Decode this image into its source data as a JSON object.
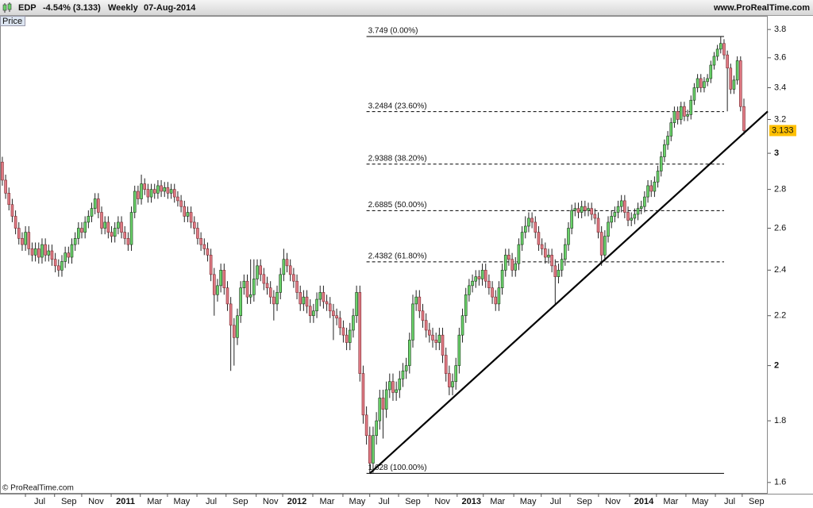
{
  "header": {
    "symbol": "EDP",
    "change": "-4.54% (3.133)",
    "period": "Weekly",
    "date": "07-Aug-2014",
    "site": "www.ProRealTime.com"
  },
  "panel_label": "Price",
  "footer": "© ProRealTime.com",
  "chart_data": {
    "type": "candlestick",
    "log_scale": true,
    "up_color": "#6ad26a",
    "down_color": "#e07a84",
    "line_color": "#000000",
    "last_price_color": "#ffc000",
    "xlim": [
      -0.7,
      231.2
    ],
    "ylim": [
      1.566,
      3.9
    ],
    "yticks": [
      1.6,
      1.8,
      2,
      2.2,
      2.4,
      2.6,
      2.8,
      3,
      3.2,
      3.4,
      3.6,
      3.8
    ],
    "xticks": [
      {
        "value": 11.3,
        "label": "Jul"
      },
      {
        "value": 20.1,
        "label": "Sep"
      },
      {
        "value": 28.3,
        "label": "Nov"
      },
      {
        "value": 37.2,
        "label": "2011"
      },
      {
        "value": 46,
        "label": "Mar"
      },
      {
        "value": 54.2,
        "label": "May"
      },
      {
        "value": 63.1,
        "label": "Jul"
      },
      {
        "value": 71.9,
        "label": "Sep"
      },
      {
        "value": 81,
        "label": "Nov"
      },
      {
        "value": 89,
        "label": "2012"
      },
      {
        "value": 98.1,
        "label": "Mar"
      },
      {
        "value": 107.2,
        "label": "May"
      },
      {
        "value": 115.3,
        "label": "Jul"
      },
      {
        "value": 124,
        "label": "Sep"
      },
      {
        "value": 132.9,
        "label": "Nov"
      },
      {
        "value": 141.7,
        "label": "2013"
      },
      {
        "value": 149.6,
        "label": "Mar"
      },
      {
        "value": 158.8,
        "label": "May"
      },
      {
        "value": 167.1,
        "label": "Jul"
      },
      {
        "value": 175.8,
        "label": "Sep"
      },
      {
        "value": 184.4,
        "label": "Nov"
      },
      {
        "value": 193.8,
        "label": "2014"
      },
      {
        "value": 201.9,
        "label": "Mar"
      },
      {
        "value": 210.8,
        "label": "May"
      },
      {
        "value": 219.7,
        "label": "Jul"
      },
      {
        "value": 227.8,
        "label": "Sep"
      }
    ],
    "open": [
      2.95,
      2.85,
      2.78,
      2.72,
      2.66,
      2.6,
      2.55,
      2.52,
      2.58,
      2.5,
      2.47,
      2.5,
      2.46,
      2.52,
      2.47,
      2.49,
      2.45,
      2.42,
      2.4,
      2.44,
      2.48,
      2.46,
      2.52,
      2.55,
      2.6,
      2.58,
      2.63,
      2.66,
      2.7,
      2.75,
      2.68,
      2.6,
      2.63,
      2.58,
      2.56,
      2.6,
      2.63,
      2.58,
      2.55,
      2.52,
      2.68,
      2.79,
      2.75,
      2.83,
      2.8,
      2.76,
      2.8,
      2.78,
      2.82,
      2.79,
      2.81,
      2.78,
      2.8,
      2.76,
      2.74,
      2.71,
      2.66,
      2.68,
      2.63,
      2.6,
      2.55,
      2.52,
      2.5,
      2.47,
      2.38,
      2.29,
      2.33,
      2.4,
      2.32,
      2.25,
      2.16,
      2.11,
      2.2,
      2.32,
      2.35,
      2.28,
      2.29,
      2.36,
      2.42,
      2.38,
      2.34,
      2.32,
      2.28,
      2.25,
      2.3,
      2.38,
      2.45,
      2.42,
      2.38,
      2.35,
      2.3,
      2.25,
      2.28,
      2.24,
      2.2,
      2.22,
      2.27,
      2.3,
      2.26,
      2.25,
      2.22,
      2.2,
      2.19,
      2.15,
      2.12,
      2.09,
      2.14,
      2.2,
      2.3,
      1.97,
      1.82,
      1.75,
      1.66,
      1.75,
      1.8,
      1.88,
      1.84,
      1.91,
      1.94,
      1.9,
      1.91,
      1.95,
      1.98,
      2.0,
      2.1,
      2.25,
      2.28,
      2.22,
      2.18,
      2.14,
      2.12,
      2.1,
      2.09,
      2.12,
      2.04,
      1.97,
      1.92,
      1.94,
      2.0,
      2.12,
      2.2,
      2.29,
      2.33,
      2.35,
      2.37,
      2.36,
      2.4,
      2.35,
      2.32,
      2.28,
      2.25,
      2.32,
      2.4,
      2.47,
      2.45,
      2.4,
      2.43,
      2.52,
      2.58,
      2.61,
      2.65,
      2.63,
      2.58,
      2.52,
      2.5,
      2.46,
      2.47,
      2.42,
      2.37,
      2.4,
      2.45,
      2.52,
      2.6,
      2.69,
      2.7,
      2.68,
      2.71,
      2.69,
      2.7,
      2.67,
      2.65,
      2.58,
      2.47,
      2.56,
      2.63,
      2.66,
      2.68,
      2.71,
      2.74,
      2.68,
      2.64,
      2.65,
      2.67,
      2.7,
      2.71,
      2.76,
      2.82,
      2.79,
      2.84,
      2.9,
      2.98,
      3.05,
      3.1,
      3.18,
      3.25,
      3.2,
      3.28,
      3.22,
      3.23,
      3.32,
      3.4,
      3.46,
      3.4,
      3.44,
      3.46,
      3.55,
      3.61,
      3.66,
      3.7,
      3.62,
      3.53,
      3.39,
      3.45,
      3.58,
      3.28
    ],
    "high": [
      2.98,
      2.88,
      2.81,
      2.75,
      2.69,
      2.63,
      2.58,
      2.61,
      2.61,
      2.53,
      2.53,
      2.53,
      2.55,
      2.55,
      2.52,
      2.52,
      2.48,
      2.45,
      2.47,
      2.51,
      2.51,
      2.55,
      2.58,
      2.63,
      2.63,
      2.66,
      2.69,
      2.73,
      2.78,
      2.78,
      2.71,
      2.66,
      2.66,
      2.61,
      2.63,
      2.66,
      2.66,
      2.61,
      2.58,
      2.71,
      2.82,
      2.82,
      2.88,
      2.86,
      2.83,
      2.83,
      2.83,
      2.85,
      2.85,
      2.84,
      2.84,
      2.83,
      2.83,
      2.79,
      2.77,
      2.74,
      2.71,
      2.71,
      2.66,
      2.63,
      2.58,
      2.55,
      2.53,
      2.5,
      2.41,
      2.36,
      2.43,
      2.43,
      2.35,
      2.28,
      2.19,
      2.23,
      2.35,
      2.38,
      2.38,
      2.45,
      2.45,
      2.45,
      2.45,
      2.41,
      2.37,
      2.35,
      2.31,
      2.33,
      2.41,
      2.5,
      2.48,
      2.45,
      2.41,
      2.38,
      2.33,
      2.31,
      2.31,
      2.27,
      2.25,
      2.3,
      2.33,
      2.33,
      2.29,
      2.28,
      2.25,
      2.23,
      2.22,
      2.18,
      2.15,
      2.17,
      2.23,
      2.33,
      2.33,
      2.0,
      1.85,
      1.78,
      1.78,
      1.83,
      1.91,
      1.91,
      1.94,
      1.97,
      1.97,
      1.94,
      1.98,
      2.01,
      2.03,
      2.13,
      2.29,
      2.31,
      2.31,
      2.25,
      2.21,
      2.17,
      2.15,
      2.13,
      2.15,
      2.15,
      2.07,
      2.0,
      1.97,
      2.03,
      2.15,
      2.23,
      2.32,
      2.36,
      2.38,
      2.4,
      2.4,
      2.43,
      2.43,
      2.38,
      2.35,
      2.31,
      2.35,
      2.43,
      2.5,
      2.5,
      2.48,
      2.46,
      2.55,
      2.61,
      2.66,
      2.68,
      2.68,
      2.66,
      2.61,
      2.55,
      2.53,
      2.5,
      2.5,
      2.45,
      2.43,
      2.48,
      2.55,
      2.63,
      2.72,
      2.73,
      2.73,
      2.74,
      2.74,
      2.73,
      2.73,
      2.7,
      2.68,
      2.61,
      2.59,
      2.66,
      2.69,
      2.71,
      2.74,
      2.77,
      2.77,
      2.71,
      2.68,
      2.7,
      2.73,
      2.74,
      2.79,
      2.85,
      2.85,
      2.87,
      2.93,
      3.01,
      3.08,
      3.13,
      3.21,
      3.28,
      3.28,
      3.31,
      3.31,
      3.26,
      3.35,
      3.43,
      3.49,
      3.49,
      3.47,
      3.49,
      3.58,
      3.64,
      3.69,
      3.749,
      3.73,
      3.65,
      3.56,
      3.48,
      3.61,
      3.61,
      3.33
    ],
    "low": [
      2.82,
      2.75,
      2.69,
      2.63,
      2.57,
      2.52,
      2.49,
      2.49,
      2.47,
      2.44,
      2.44,
      2.43,
      2.43,
      2.44,
      2.44,
      2.42,
      2.39,
      2.37,
      2.37,
      2.41,
      2.43,
      2.43,
      2.49,
      2.52,
      2.55,
      2.55,
      2.6,
      2.63,
      2.67,
      2.65,
      2.57,
      2.57,
      2.55,
      2.53,
      2.53,
      2.57,
      2.55,
      2.52,
      2.49,
      2.49,
      2.65,
      2.72,
      2.72,
      2.77,
      2.73,
      2.73,
      2.75,
      2.75,
      2.76,
      2.76,
      2.75,
      2.75,
      2.73,
      2.71,
      2.68,
      2.63,
      2.63,
      2.6,
      2.57,
      2.52,
      2.49,
      2.47,
      2.44,
      2.35,
      2.2,
      2.26,
      2.3,
      2.29,
      2.22,
      1.98,
      2.0,
      2.08,
      2.17,
      2.29,
      2.25,
      2.25,
      2.26,
      2.33,
      2.35,
      2.31,
      2.29,
      2.25,
      2.18,
      2.22,
      2.27,
      2.35,
      2.39,
      2.35,
      2.32,
      2.27,
      2.22,
      2.22,
      2.21,
      2.17,
      2.17,
      2.19,
      2.24,
      2.23,
      2.22,
      2.19,
      2.1,
      2.16,
      2.12,
      2.09,
      2.06,
      2.06,
      2.11,
      2.17,
      1.94,
      1.79,
      1.72,
      1.628,
      1.63,
      1.72,
      1.77,
      1.74,
      1.81,
      1.88,
      1.87,
      1.87,
      1.88,
      1.92,
      1.95,
      1.97,
      2.07,
      2.22,
      2.19,
      2.15,
      2.11,
      2.09,
      2.07,
      2.06,
      2.06,
      2.01,
      1.94,
      1.89,
      1.89,
      1.91,
      1.97,
      2.09,
      2.17,
      2.26,
      2.3,
      2.32,
      2.33,
      2.33,
      2.32,
      2.29,
      2.25,
      2.22,
      2.22,
      2.29,
      2.37,
      2.42,
      2.37,
      2.37,
      2.4,
      2.49,
      2.55,
      2.58,
      2.6,
      2.55,
      2.49,
      2.47,
      2.43,
      2.43,
      2.39,
      2.25,
      2.34,
      2.37,
      2.42,
      2.49,
      2.57,
      2.66,
      2.65,
      2.65,
      2.66,
      2.66,
      2.64,
      2.62,
      2.55,
      2.42,
      2.44,
      2.53,
      2.6,
      2.63,
      2.65,
      2.68,
      2.65,
      2.61,
      2.61,
      2.62,
      2.64,
      2.67,
      2.68,
      2.73,
      2.76,
      2.76,
      2.81,
      2.87,
      2.95,
      3.02,
      3.07,
      3.15,
      3.17,
      3.17,
      3.19,
      3.19,
      3.2,
      3.29,
      3.37,
      3.37,
      3.37,
      3.41,
      3.43,
      3.52,
      3.58,
      3.63,
      3.59,
      3.25,
      3.36,
      3.36,
      3.42,
      3.25,
      3.11
    ],
    "close": [
      2.85,
      2.78,
      2.72,
      2.66,
      2.6,
      2.55,
      2.52,
      2.58,
      2.5,
      2.47,
      2.5,
      2.46,
      2.52,
      2.47,
      2.49,
      2.45,
      2.42,
      2.4,
      2.44,
      2.48,
      2.46,
      2.52,
      2.55,
      2.6,
      2.58,
      2.63,
      2.66,
      2.7,
      2.75,
      2.68,
      2.6,
      2.63,
      2.58,
      2.56,
      2.6,
      2.63,
      2.58,
      2.55,
      2.52,
      2.68,
      2.79,
      2.75,
      2.83,
      2.8,
      2.76,
      2.8,
      2.78,
      2.82,
      2.79,
      2.81,
      2.78,
      2.8,
      2.76,
      2.74,
      2.71,
      2.66,
      2.68,
      2.63,
      2.6,
      2.55,
      2.52,
      2.5,
      2.47,
      2.38,
      2.29,
      2.33,
      2.4,
      2.32,
      2.25,
      2.16,
      2.11,
      2.2,
      2.32,
      2.35,
      2.28,
      2.29,
      2.36,
      2.42,
      2.38,
      2.34,
      2.32,
      2.28,
      2.25,
      2.3,
      2.38,
      2.45,
      2.42,
      2.38,
      2.35,
      2.3,
      2.25,
      2.28,
      2.24,
      2.2,
      2.22,
      2.27,
      2.3,
      2.26,
      2.25,
      2.22,
      2.2,
      2.19,
      2.15,
      2.12,
      2.09,
      2.14,
      2.2,
      2.3,
      1.97,
      1.82,
      1.75,
      1.66,
      1.75,
      1.8,
      1.88,
      1.84,
      1.91,
      1.94,
      1.9,
      1.91,
      1.95,
      1.98,
      2.0,
      2.1,
      2.25,
      2.28,
      2.22,
      2.18,
      2.14,
      2.12,
      2.1,
      2.09,
      2.12,
      2.04,
      1.97,
      1.92,
      1.94,
      2.0,
      2.12,
      2.2,
      2.29,
      2.33,
      2.35,
      2.37,
      2.36,
      2.4,
      2.35,
      2.32,
      2.28,
      2.25,
      2.32,
      2.4,
      2.47,
      2.45,
      2.4,
      2.43,
      2.52,
      2.58,
      2.61,
      2.65,
      2.63,
      2.58,
      2.52,
      2.5,
      2.46,
      2.47,
      2.42,
      2.37,
      2.4,
      2.45,
      2.52,
      2.6,
      2.69,
      2.7,
      2.68,
      2.71,
      2.69,
      2.7,
      2.67,
      2.65,
      2.58,
      2.47,
      2.56,
      2.63,
      2.66,
      2.68,
      2.71,
      2.74,
      2.68,
      2.64,
      2.65,
      2.67,
      2.7,
      2.71,
      2.76,
      2.82,
      2.79,
      2.84,
      2.9,
      2.98,
      3.05,
      3.1,
      3.18,
      3.25,
      3.2,
      3.28,
      3.22,
      3.23,
      3.32,
      3.4,
      3.46,
      3.4,
      3.44,
      3.46,
      3.55,
      3.61,
      3.66,
      3.7,
      3.62,
      3.53,
      3.39,
      3.45,
      3.58,
      3.28,
      3.133
    ],
    "last_price": 3.133,
    "fib_span": [
      110,
      218
    ],
    "fib_levels": [
      {
        "value": 3.749,
        "label": "3.749 (0.00%)",
        "style": "solid"
      },
      {
        "value": 3.2484,
        "label": "3.2484 (23.60%)",
        "style": "dashed"
      },
      {
        "value": 2.9388,
        "label": "2.9388 (38.20%)",
        "style": "dashed"
      },
      {
        "value": 2.6885,
        "label": "2.6885 (50.00%)",
        "style": "dashed"
      },
      {
        "value": 2.4382,
        "label": "2.4382 (61.80%)",
        "style": "dashed"
      },
      {
        "value": 1.628,
        "label": "1.628 (100.00%)",
        "style": "solid"
      }
    ],
    "trendline": {
      "start": [
        111,
        1.628
      ],
      "end": [
        231.2,
        3.25
      ]
    }
  }
}
